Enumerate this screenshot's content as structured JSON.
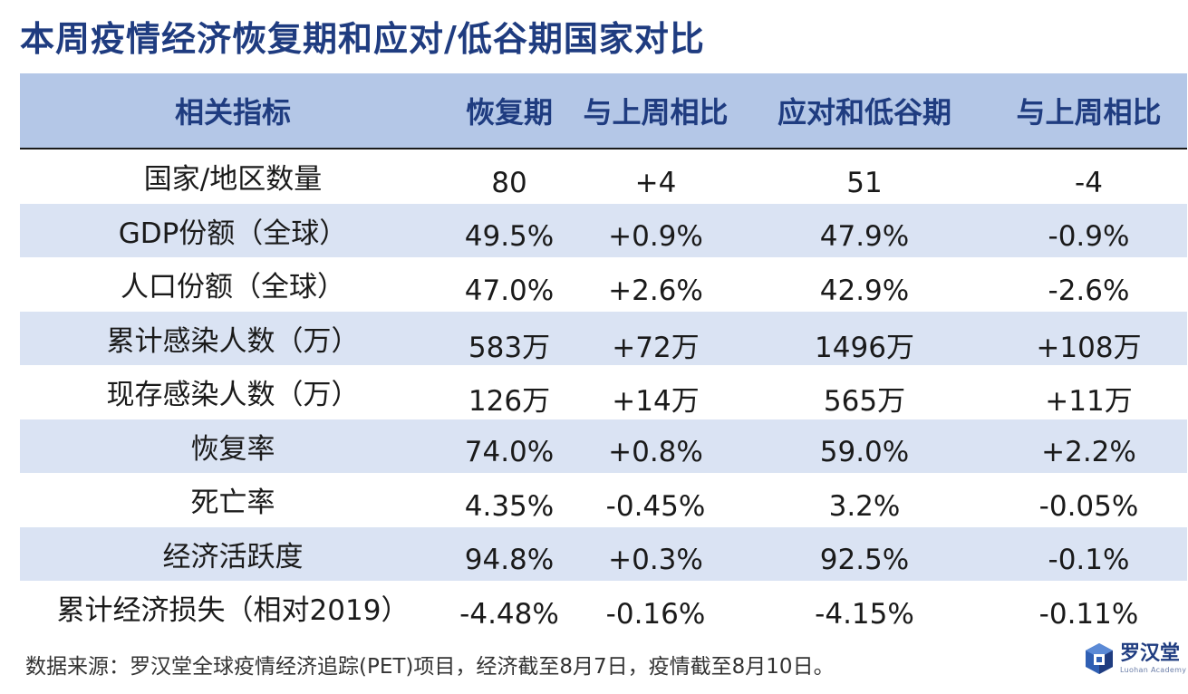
{
  "title": "本周疫情经济恢复期和应对/低谷期国家对比",
  "table": {
    "headers": [
      "相关指标",
      "恢复期",
      "与上周相比",
      "应对和低谷期",
      "与上周相比"
    ],
    "rows": [
      [
        "国家/地区数量",
        "80",
        "+4",
        "51",
        "-4"
      ],
      [
        "GDP份额（全球）",
        "49.5%",
        "+0.9%",
        "47.9%",
        "-0.9%"
      ],
      [
        "人口份额（全球）",
        "47.0%",
        "+2.6%",
        "42.9%",
        "-2.6%"
      ],
      [
        "累计感染人数（万）",
        "583万",
        "+72万",
        "1496万",
        "+108万"
      ],
      [
        "现存感染人数（万）",
        "126万",
        "+14万",
        "565万",
        "+11万"
      ],
      [
        "恢复率",
        "74.0%",
        "+0.8%",
        "59.0%",
        "+2.2%"
      ],
      [
        "死亡率",
        "4.35%",
        "-0.45%",
        "3.2%",
        "-0.05%"
      ],
      [
        "经济活跃度",
        "94.8%",
        "+0.3%",
        "92.5%",
        "-0.1%"
      ],
      [
        "累计经济损失（相对2019）",
        "-4.48%",
        "-0.16%",
        "-4.15%",
        "-0.11%"
      ]
    ]
  },
  "source": "数据来源：罗汉堂全球疫情经济追踪(PET)项目，经济截至8月7日，疫情截至8月10日。",
  "logo": {
    "cn": "罗汉堂",
    "en": "Luohan Academy",
    "icon": "luohan-logo-icon"
  },
  "colors": {
    "title": "#1f3c80",
    "header_bg": "#b4c7e7",
    "row_shade": "#dae3f3"
  }
}
